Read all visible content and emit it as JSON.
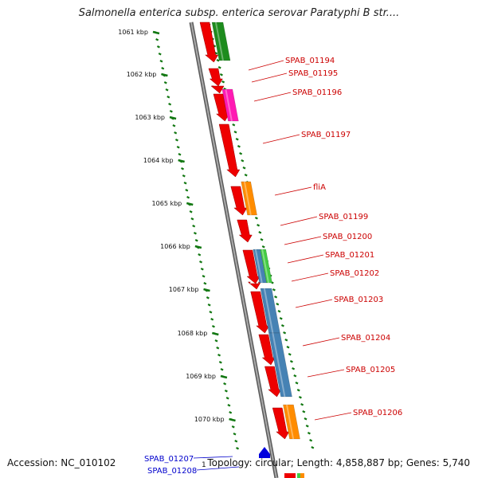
{
  "title": "Salmonella enterica subsp. enterica serovar Paratyphi B str....",
  "footer": {
    "accession": "Accession: NC_010102",
    "topology": "Topology: circular; Length: 4,858,887 bp; Genes: 5,740",
    "origin_marker": "1"
  },
  "colors": {
    "cds_red": "#ee0000",
    "green": "#1e8c1e",
    "magenta": "#ff1ab3",
    "orange": "#ff8c00",
    "steel_blue": "#4682b4",
    "light_green": "#44cc44",
    "backbone": "#888888",
    "tick_green": "#117711",
    "label_red": "#cc0000",
    "label_blue": "#0000cc"
  },
  "ruler": {
    "ticks": [
      "1061 kbp",
      "1062 kbp",
      "1063 kbp",
      "1064 kbp",
      "1065 kbp",
      "1066 kbp",
      "1067 kbp",
      "1068 kbp",
      "1069 kbp",
      "1070 kbp"
    ]
  },
  "genes": [
    {
      "label": "SPAB_01194",
      "color": "red"
    },
    {
      "label": "SPAB_01195",
      "color": "red"
    },
    {
      "label": "SPAB_01196",
      "color": "red"
    },
    {
      "label": "SPAB_01197",
      "color": "red"
    },
    {
      "label": "fliA",
      "color": "red"
    },
    {
      "label": "SPAB_01199",
      "color": "red"
    },
    {
      "label": "SPAB_01200",
      "color": "red"
    },
    {
      "label": "SPAB_01201",
      "color": "red"
    },
    {
      "label": "SPAB_01202",
      "color": "red"
    },
    {
      "label": "SPAB_01203",
      "color": "red"
    },
    {
      "label": "SPAB_01204",
      "color": "red"
    },
    {
      "label": "SPAB_01205",
      "color": "red"
    },
    {
      "label": "SPAB_01206",
      "color": "red"
    },
    {
      "label": "SPAB_01207",
      "color": "blue"
    },
    {
      "label": "SPAB_01208",
      "color": "blue"
    }
  ]
}
